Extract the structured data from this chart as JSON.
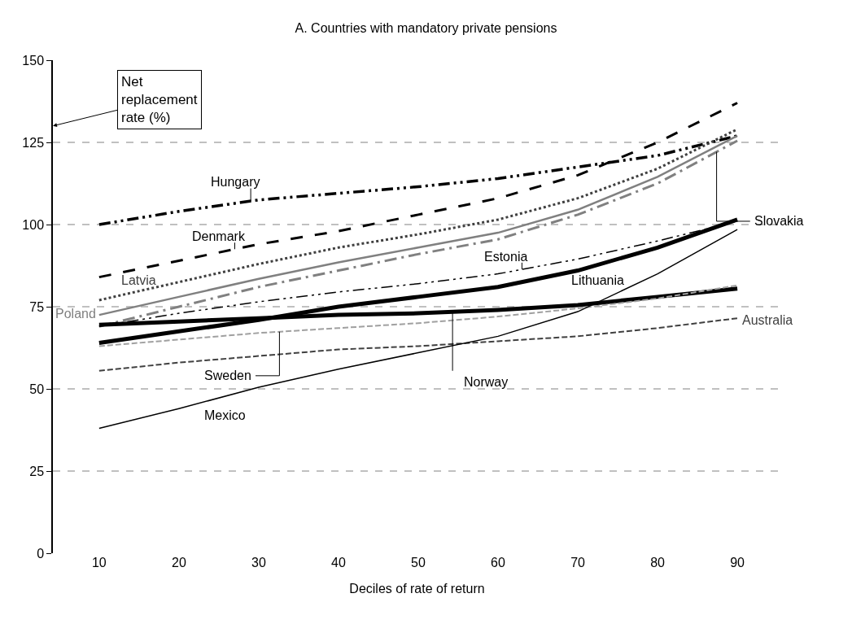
{
  "chart_data": {
    "type": "line",
    "title": "A. Countries with mandatory private pensions",
    "xlabel": "Deciles of rate of return",
    "ylabel": "Net replacement rate (%)",
    "x": [
      10,
      20,
      30,
      40,
      50,
      60,
      70,
      80,
      90
    ],
    "xlim": [
      4.2,
      95.5
    ],
    "xticks": [
      10,
      20,
      30,
      40,
      50,
      60,
      70,
      80,
      90
    ],
    "ylim": [
      0,
      150
    ],
    "yticks": [
      0,
      25,
      50,
      75,
      100,
      125,
      150
    ],
    "grid": "y",
    "legend": false,
    "marker": "none",
    "series": [
      {
        "name": "Hungary",
        "color": "#000000",
        "line_style": "dashdotdot",
        "values": [
          100,
          104,
          107.5,
          109.5,
          111.5,
          114,
          117.5,
          121,
          127
        ]
      },
      {
        "name": "Denmark",
        "color": "#000000",
        "line_style": "longdash",
        "values": [
          84,
          89,
          94,
          98,
          103,
          108,
          115,
          125,
          137
        ]
      },
      {
        "name": "Latvia",
        "color": "#404040",
        "line_style": "dotted",
        "values": [
          77,
          82.5,
          88,
          93,
          97,
          101.5,
          108,
          117,
          129
        ]
      },
      {
        "name": "Poland",
        "color": "#808080",
        "line_style": "solid",
        "values": [
          72.5,
          78,
          83.5,
          88.5,
          93,
          97.5,
          104.5,
          114.5,
          127
        ]
      },
      {
        "name": "Slovakia",
        "color": "#808080",
        "line_style": "longdashdot",
        "values": [
          69,
          75,
          81,
          86,
          91,
          95.5,
          103,
          112.5,
          125.5
        ]
      },
      {
        "name": "Estonia",
        "color": "#000000",
        "line_style": "dashdotdot",
        "values": [
          69,
          73,
          76.5,
          79.5,
          82,
          85,
          89.5,
          95,
          101
        ]
      },
      {
        "name": "Lithuania",
        "color": "#000000",
        "line_style": "solid",
        "values": [
          64,
          67.5,
          71,
          75,
          78,
          81,
          86,
          93,
          101.5
        ]
      },
      {
        "name": "Norway",
        "color": "#000000",
        "line_style": "solid",
        "values": [
          69.5,
          70.5,
          71.5,
          72.5,
          73,
          74,
          75.5,
          78,
          80.5
        ]
      },
      {
        "name": "Sweden",
        "color": "#a0a0a0",
        "line_style": "dashed",
        "values": [
          63,
          65,
          67,
          68.5,
          70,
          72,
          74.5,
          77.5,
          81.5
        ]
      },
      {
        "name": "Australia",
        "color": "#404040",
        "line_style": "dashed",
        "values": [
          55.5,
          58,
          60,
          62,
          63,
          64.5,
          66,
          68.5,
          71.5
        ]
      },
      {
        "name": "Mexico",
        "color": "#000000",
        "line_style": "solid",
        "values": [
          38,
          44,
          50.5,
          56,
          61,
          66,
          73.5,
          85,
          98.5
        ]
      }
    ]
  }
}
